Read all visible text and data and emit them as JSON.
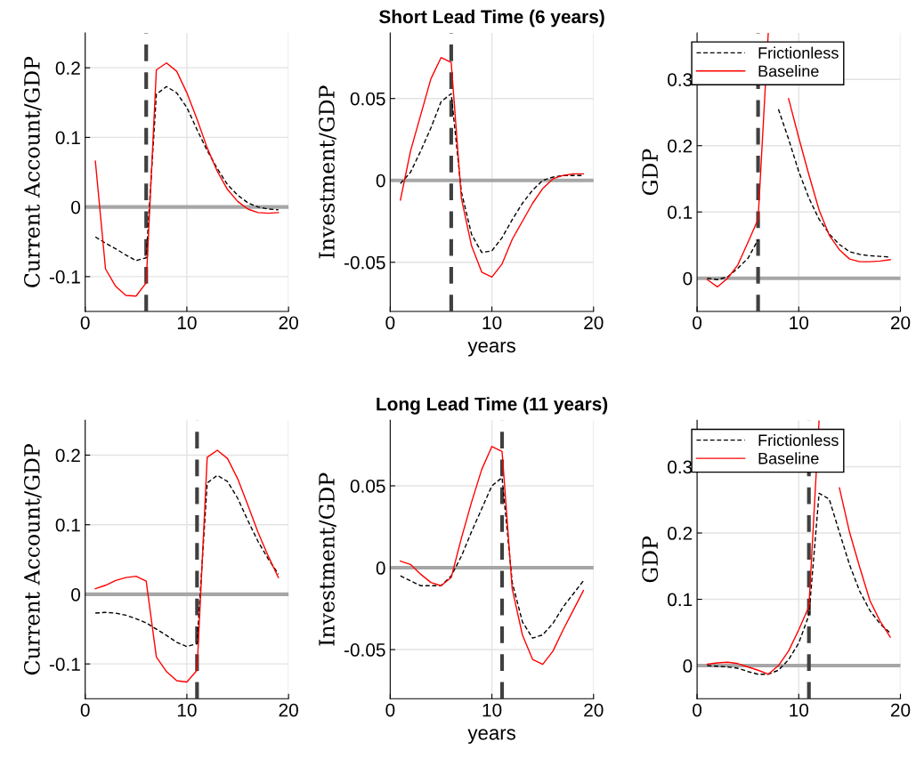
{
  "chart_data": [
    {
      "type": "line",
      "ylabel": "Current Account/GDP",
      "x": [
        1,
        2,
        3,
        4,
        5,
        6,
        7,
        8,
        9,
        10,
        11,
        12,
        13,
        14,
        15,
        16,
        17,
        18,
        19
      ],
      "xlim": [
        0,
        20
      ],
      "xticks": [
        0,
        10,
        20
      ],
      "ylim": [
        -0.15,
        0.25
      ],
      "yticks": [
        -0.1,
        0,
        0.1,
        0.2
      ],
      "grid": true,
      "series": [
        {
          "color": "#000000",
          "line_style": "dashed",
          "values": [
            -0.043,
            -0.052,
            -0.06,
            -0.069,
            -0.077,
            -0.073,
            0.162,
            0.173,
            0.164,
            0.143,
            0.111,
            0.081,
            0.055,
            0.032,
            0.017,
            0.006,
            0.0,
            -0.003,
            -0.004
          ]
        },
        {
          "color": "#ff0000",
          "line_style": "solid",
          "values": [
            0.066,
            -0.089,
            -0.114,
            -0.127,
            -0.128,
            -0.109,
            0.197,
            0.207,
            0.195,
            0.164,
            0.126,
            0.085,
            0.051,
            0.025,
            0.008,
            -0.003,
            -0.008,
            -0.009,
            -0.008
          ]
        }
      ],
      "ref_lines": [
        {
          "axis": "y",
          "value": 0,
          "color": "#a6a6a6",
          "line_style": "solid"
        },
        {
          "axis": "x",
          "value": 6,
          "color": "#404040",
          "line_style": "dashed"
        }
      ]
    },
    {
      "type": "line",
      "title": "Short Lead Time (6 years)",
      "xlabel": "years",
      "ylabel": "Investment/GDP",
      "x": [
        1,
        2,
        3,
        4,
        5,
        6,
        7,
        8,
        9,
        10,
        11,
        12,
        13,
        14,
        15,
        16,
        17,
        18,
        19
      ],
      "xlim": [
        0,
        20
      ],
      "xticks": [
        0,
        10,
        20
      ],
      "ylim": [
        -0.08,
        0.09
      ],
      "yticks": [
        -0.05,
        0,
        0.05
      ],
      "grid": true,
      "series": [
        {
          "color": "#000000",
          "line_style": "dashed",
          "values": [
            -0.002,
            0.005,
            0.018,
            0.032,
            0.048,
            0.053,
            -0.007,
            -0.033,
            -0.044,
            -0.043,
            -0.035,
            -0.024,
            -0.014,
            -0.006,
            0.0,
            0.002,
            0.003,
            0.003,
            0.003
          ]
        },
        {
          "color": "#ff0000",
          "line_style": "solid",
          "values": [
            -0.012,
            0.018,
            0.04,
            0.062,
            0.075,
            0.072,
            -0.011,
            -0.04,
            -0.056,
            -0.059,
            -0.051,
            -0.036,
            -0.025,
            -0.014,
            -0.005,
            0.001,
            0.003,
            0.004,
            0.004
          ]
        }
      ],
      "ref_lines": [
        {
          "axis": "y",
          "value": 0,
          "color": "#a6a6a6",
          "line_style": "solid"
        },
        {
          "axis": "x",
          "value": 6,
          "color": "#404040",
          "line_style": "dashed"
        }
      ]
    },
    {
      "type": "line",
      "ylabel": "GDP",
      "x": [
        1,
        2,
        3,
        4,
        5,
        6,
        7,
        8,
        9,
        10,
        11,
        12,
        13,
        14,
        15,
        16,
        17,
        18,
        19
      ],
      "xlim": [
        0,
        20
      ],
      "xticks": [
        0,
        10,
        20
      ],
      "ylim": [
        -0.05,
        0.37
      ],
      "yticks": [
        0,
        0.1,
        0.2,
        0.3
      ],
      "grid": true,
      "legend": "top left",
      "series": [
        {
          "name": "Frictionless",
          "color": "#000000",
          "line_style": "dashed",
          "values": [
            0.0,
            -0.002,
            0.002,
            0.015,
            0.03,
            0.058,
            null,
            0.255,
            0.21,
            0.161,
            0.121,
            0.089,
            0.067,
            0.051,
            0.04,
            0.036,
            0.034,
            0.033,
            0.032
          ]
        },
        {
          "name": "Baseline",
          "color": "#ff0000",
          "line_style": "solid",
          "values": [
            -0.002,
            -0.013,
            0.0,
            0.02,
            0.054,
            0.089,
            0.37,
            null,
            0.271,
            0.212,
            0.156,
            0.103,
            0.065,
            0.043,
            0.029,
            0.025,
            0.025,
            0.026,
            0.028
          ]
        }
      ],
      "ref_lines": [
        {
          "axis": "y",
          "value": 0,
          "color": "#a6a6a6",
          "line_style": "solid"
        },
        {
          "axis": "x",
          "value": 6,
          "color": "#404040",
          "line_style": "dashed"
        }
      ]
    },
    {
      "type": "line",
      "ylabel": "Current Account/GDP",
      "x": [
        1,
        2,
        3,
        4,
        5,
        6,
        7,
        8,
        9,
        10,
        11,
        12,
        13,
        14,
        15,
        16,
        17,
        18,
        19
      ],
      "xlim": [
        0,
        20
      ],
      "xticks": [
        0,
        10,
        20
      ],
      "ylim": [
        -0.15,
        0.25
      ],
      "yticks": [
        -0.1,
        0,
        0.1,
        0.2
      ],
      "grid": true,
      "series": [
        {
          "color": "#000000",
          "line_style": "dashed",
          "values": [
            -0.027,
            -0.026,
            -0.027,
            -0.03,
            -0.035,
            -0.041,
            -0.05,
            -0.059,
            -0.069,
            -0.075,
            -0.071,
            0.16,
            0.171,
            0.162,
            0.138,
            0.106,
            0.076,
            0.051,
            0.029
          ]
        },
        {
          "color": "#ff0000",
          "line_style": "solid",
          "values": [
            0.008,
            0.013,
            0.02,
            0.024,
            0.026,
            0.019,
            -0.09,
            -0.111,
            -0.124,
            -0.126,
            -0.109,
            0.197,
            0.207,
            0.195,
            0.166,
            0.128,
            0.089,
            0.055,
            0.024
          ]
        }
      ],
      "ref_lines": [
        {
          "axis": "y",
          "value": 0,
          "color": "#a6a6a6",
          "line_style": "solid"
        },
        {
          "axis": "x",
          "value": 11,
          "color": "#404040",
          "line_style": "dashed"
        }
      ]
    },
    {
      "type": "line",
      "title": "Long Lead Time (11 years)",
      "xlabel": "years",
      "ylabel": "Investment/GDP",
      "x": [
        1,
        2,
        3,
        4,
        5,
        6,
        7,
        8,
        9,
        10,
        11,
        12,
        13,
        14,
        15,
        16,
        17,
        18,
        19
      ],
      "xlim": [
        0,
        20
      ],
      "xticks": [
        0,
        10,
        20
      ],
      "ylim": [
        -0.08,
        0.09
      ],
      "yticks": [
        -0.05,
        0,
        0.05
      ],
      "grid": true,
      "series": [
        {
          "color": "#000000",
          "line_style": "dashed",
          "values": [
            -0.005,
            -0.008,
            -0.011,
            -0.011,
            -0.011,
            -0.005,
            0.007,
            0.022,
            0.036,
            0.05,
            0.055,
            -0.009,
            -0.033,
            -0.043,
            -0.041,
            -0.034,
            -0.024,
            -0.016,
            -0.008
          ]
        },
        {
          "color": "#ff0000",
          "line_style": "solid",
          "values": [
            0.004,
            0.002,
            -0.004,
            -0.009,
            -0.011,
            -0.006,
            0.018,
            0.04,
            0.06,
            0.074,
            0.071,
            -0.013,
            -0.041,
            -0.056,
            -0.059,
            -0.051,
            -0.038,
            -0.026,
            -0.014
          ]
        }
      ],
      "ref_lines": [
        {
          "axis": "y",
          "value": 0,
          "color": "#a6a6a6",
          "line_style": "solid"
        },
        {
          "axis": "x",
          "value": 11,
          "color": "#404040",
          "line_style": "dashed"
        }
      ]
    },
    {
      "type": "line",
      "ylabel": "GDP",
      "x": [
        1,
        2,
        3,
        4,
        5,
        6,
        7,
        8,
        9,
        10,
        11,
        12,
        13,
        14,
        15,
        16,
        17,
        18,
        19
      ],
      "xlim": [
        0,
        20
      ],
      "xticks": [
        0,
        10,
        20
      ],
      "ylim": [
        -0.05,
        0.37
      ],
      "yticks": [
        0,
        0.1,
        0.2,
        0.3
      ],
      "grid": true,
      "legend": "top left",
      "series": [
        {
          "name": "Frictionless",
          "color": "#000000",
          "line_style": "dashed",
          "values": [
            0.0,
            -0.001,
            -0.002,
            -0.004,
            -0.009,
            -0.013,
            -0.013,
            -0.007,
            0.009,
            0.034,
            0.076,
            0.26,
            0.251,
            0.201,
            0.152,
            0.112,
            0.083,
            0.063,
            0.049
          ]
        },
        {
          "name": "Baseline",
          "color": "#ff0000",
          "line_style": "solid",
          "values": [
            0.002,
            0.004,
            0.005,
            0.003,
            -0.002,
            -0.007,
            -0.013,
            0.0,
            0.022,
            0.054,
            0.089,
            0.37,
            null,
            0.268,
            0.201,
            0.148,
            0.098,
            0.067,
            0.043
          ]
        }
      ],
      "ref_lines": [
        {
          "axis": "y",
          "value": 0,
          "color": "#a6a6a6",
          "line_style": "solid"
        },
        {
          "axis": "x",
          "value": 11,
          "color": "#404040",
          "line_style": "dashed"
        }
      ]
    }
  ]
}
